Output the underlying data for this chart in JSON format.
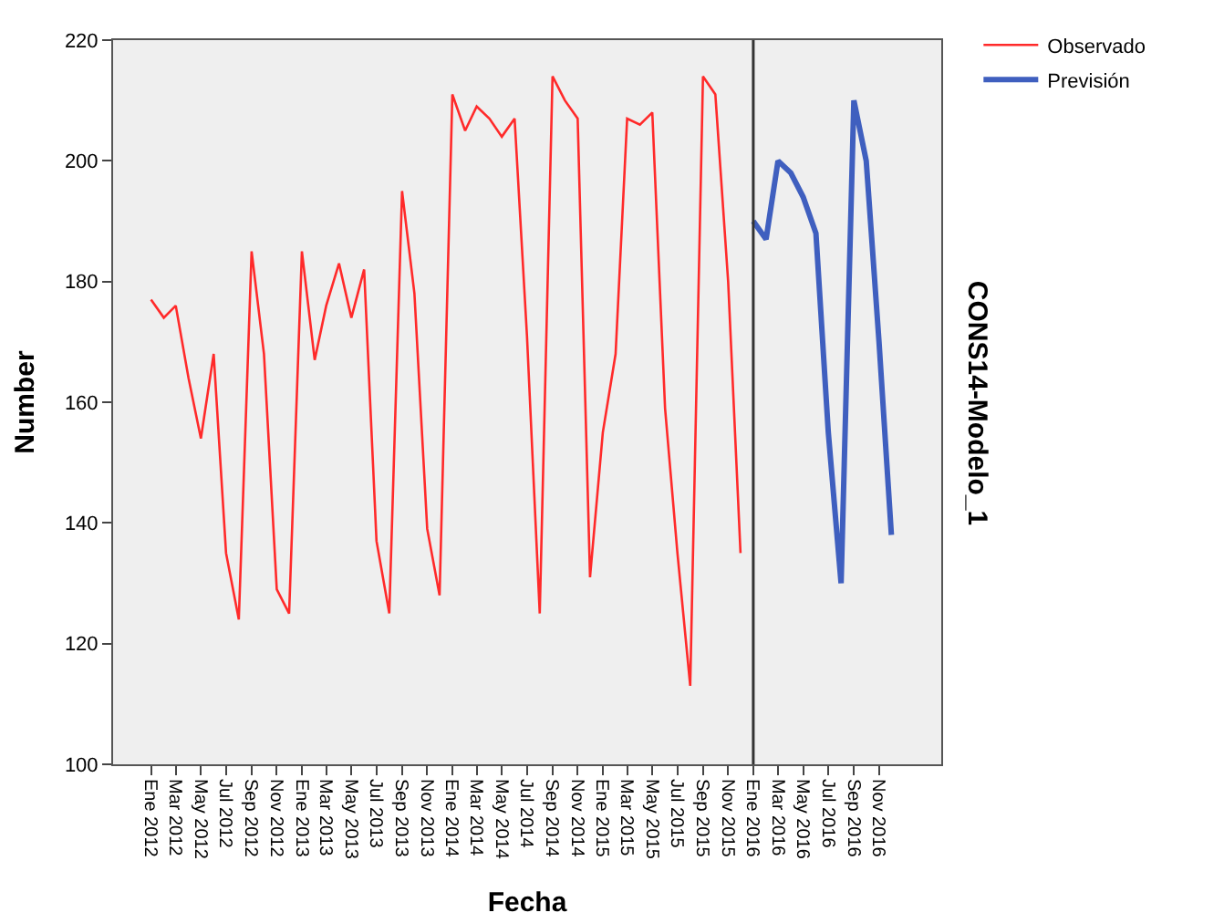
{
  "chart_data": {
    "type": "line",
    "xlabel": "Fecha",
    "ylabel": "Number",
    "annotations": [
      "CONS14-Modelo_1"
    ],
    "x": [
      "2012-01",
      "2012-02",
      "2012-03",
      "2012-04",
      "2012-05",
      "2012-06",
      "2012-07",
      "2012-08",
      "2012-09",
      "2012-10",
      "2012-11",
      "2012-12",
      "2013-01",
      "2013-02",
      "2013-03",
      "2013-04",
      "2013-05",
      "2013-06",
      "2013-07",
      "2013-08",
      "2013-09",
      "2013-10",
      "2013-11",
      "2013-12",
      "2014-01",
      "2014-02",
      "2014-03",
      "2014-04",
      "2014-05",
      "2014-06",
      "2014-07",
      "2014-08",
      "2014-09",
      "2014-10",
      "2014-11",
      "2014-12",
      "2015-01",
      "2015-02",
      "2015-03",
      "2015-04",
      "2015-05",
      "2015-06",
      "2015-07",
      "2015-08",
      "2015-09",
      "2015-10",
      "2015-11",
      "2015-12"
    ],
    "series": [
      {
        "name": "Observado",
        "color": "#ff2a2a",
        "values": [
          177,
          174,
          176,
          164,
          154,
          168,
          135,
          124,
          185,
          168,
          129,
          125,
          185,
          167,
          176,
          183,
          174,
          182,
          137,
          125,
          195,
          178,
          139,
          128,
          211,
          205,
          209,
          207,
          204,
          207,
          171,
          125,
          214,
          210,
          207,
          131,
          155,
          168,
          207,
          206,
          208,
          159,
          135,
          113,
          214,
          211,
          180,
          135
        ]
      },
      {
        "name": "Previsión",
        "color": "#3f5fbf",
        "x": [
          "2016-01",
          "2016-02",
          "2016-03",
          "2016-04",
          "2016-05",
          "2016-06",
          "2016-07",
          "2016-08",
          "2016-09",
          "2016-10",
          "2016-11",
          "2016-12"
        ],
        "values": [
          190,
          187,
          200,
          198,
          194,
          188,
          155,
          130,
          210,
          200,
          170,
          138
        ]
      }
    ],
    "xlim": [
      "2011-10",
      "2017-04"
    ],
    "xticks": [
      {
        "value": "2012-01",
        "label": "Ene 2012"
      },
      {
        "value": "2012-03",
        "label": "Mar 2012"
      },
      {
        "value": "2012-05",
        "label": "May 2012"
      },
      {
        "value": "2012-07",
        "label": "Jul 2012"
      },
      {
        "value": "2012-09",
        "label": "Sep 2012"
      },
      {
        "value": "2012-11",
        "label": "Nov 2012"
      },
      {
        "value": "2013-01",
        "label": "Ene 2013"
      },
      {
        "value": "2013-03",
        "label": "Mar 2013"
      },
      {
        "value": "2013-05",
        "label": "May 2013"
      },
      {
        "value": "2013-07",
        "label": "Jul 2013"
      },
      {
        "value": "2013-09",
        "label": "Sep 2013"
      },
      {
        "value": "2013-11",
        "label": "Nov 2013"
      },
      {
        "value": "2014-01",
        "label": "Ene 2014"
      },
      {
        "value": "2014-03",
        "label": "Mar 2014"
      },
      {
        "value": "2014-05",
        "label": "May 2014"
      },
      {
        "value": "2014-07",
        "label": "Jul 2014"
      },
      {
        "value": "2014-09",
        "label": "Sep 2014"
      },
      {
        "value": "2014-11",
        "label": "Nov 2014"
      },
      {
        "value": "2015-01",
        "label": "Ene 2015"
      },
      {
        "value": "2015-03",
        "label": "Mar 2015"
      },
      {
        "value": "2015-05",
        "label": "May 2015"
      },
      {
        "value": "2015-07",
        "label": "Jul 2015"
      },
      {
        "value": "2015-09",
        "label": "Sep 2015"
      },
      {
        "value": "2015-11",
        "label": "Nov 2015"
      },
      {
        "value": "2016-01",
        "label": "Ene 2016"
      },
      {
        "value": "2016-03",
        "label": "Mar 2016"
      },
      {
        "value": "2016-05",
        "label": "May 2016"
      },
      {
        "value": "2016-07",
        "label": "Jul 2016"
      },
      {
        "value": "2016-09",
        "label": "Sep 2016"
      },
      {
        "value": "2016-11",
        "label": "Nov 2016"
      }
    ],
    "ylim": [
      100,
      220
    ],
    "yticks": [
      100,
      120,
      140,
      160,
      180,
      200,
      220
    ],
    "ref_lines": [
      {
        "axis": "x",
        "value": "2016-01",
        "color": "#333333"
      }
    ],
    "grid": false,
    "legend": "top right",
    "marker": "none",
    "line_style": "solid"
  }
}
